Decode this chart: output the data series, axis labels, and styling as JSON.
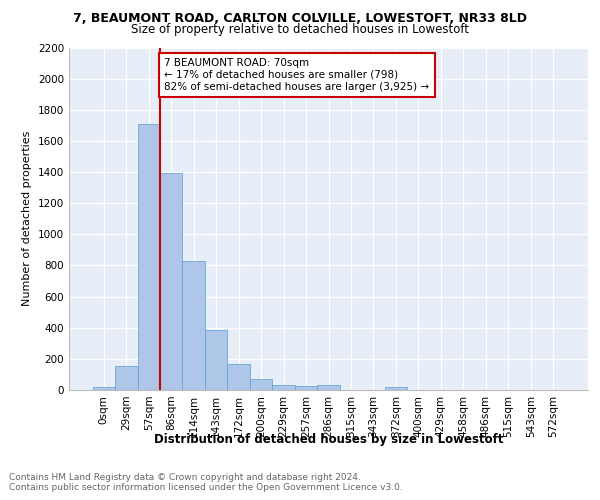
{
  "title1": "7, BEAUMONT ROAD, CARLTON COLVILLE, LOWESTOFT, NR33 8LD",
  "title2": "Size of property relative to detached houses in Lowestoft",
  "xlabel": "Distribution of detached houses by size in Lowestoft",
  "ylabel": "Number of detached properties",
  "categories": [
    "0sqm",
    "29sqm",
    "57sqm",
    "86sqm",
    "114sqm",
    "143sqm",
    "172sqm",
    "200sqm",
    "229sqm",
    "257sqm",
    "286sqm",
    "315sqm",
    "343sqm",
    "372sqm",
    "400sqm",
    "429sqm",
    "458sqm",
    "486sqm",
    "515sqm",
    "543sqm",
    "572sqm"
  ],
  "values": [
    20,
    155,
    1710,
    1395,
    830,
    385,
    165,
    70,
    35,
    25,
    30,
    0,
    0,
    20,
    0,
    0,
    0,
    0,
    0,
    0,
    0
  ],
  "bar_color": "#aec6e8",
  "bar_edge_color": "#5a9fd4",
  "property_line_bin": 2,
  "annotation_text": "7 BEAUMONT ROAD: 70sqm\n← 17% of detached houses are smaller (798)\n82% of semi-detached houses are larger (3,925) →",
  "annotation_box_color": "#ffffff",
  "annotation_box_edge": "#cc0000",
  "vline_color": "#cc0000",
  "ylim": [
    0,
    2200
  ],
  "yticks": [
    0,
    200,
    400,
    600,
    800,
    1000,
    1200,
    1400,
    1600,
    1800,
    2000,
    2200
  ],
  "footer1": "Contains HM Land Registry data © Crown copyright and database right 2024.",
  "footer2": "Contains public sector information licensed under the Open Government Licence v3.0.",
  "title1_fontsize": 9,
  "title2_fontsize": 8.5,
  "axis_fontsize": 7.5,
  "xlabel_fontsize": 8.5,
  "ylabel_fontsize": 8,
  "footer_fontsize": 6.5,
  "plot_bg_color": "#e8eef8"
}
